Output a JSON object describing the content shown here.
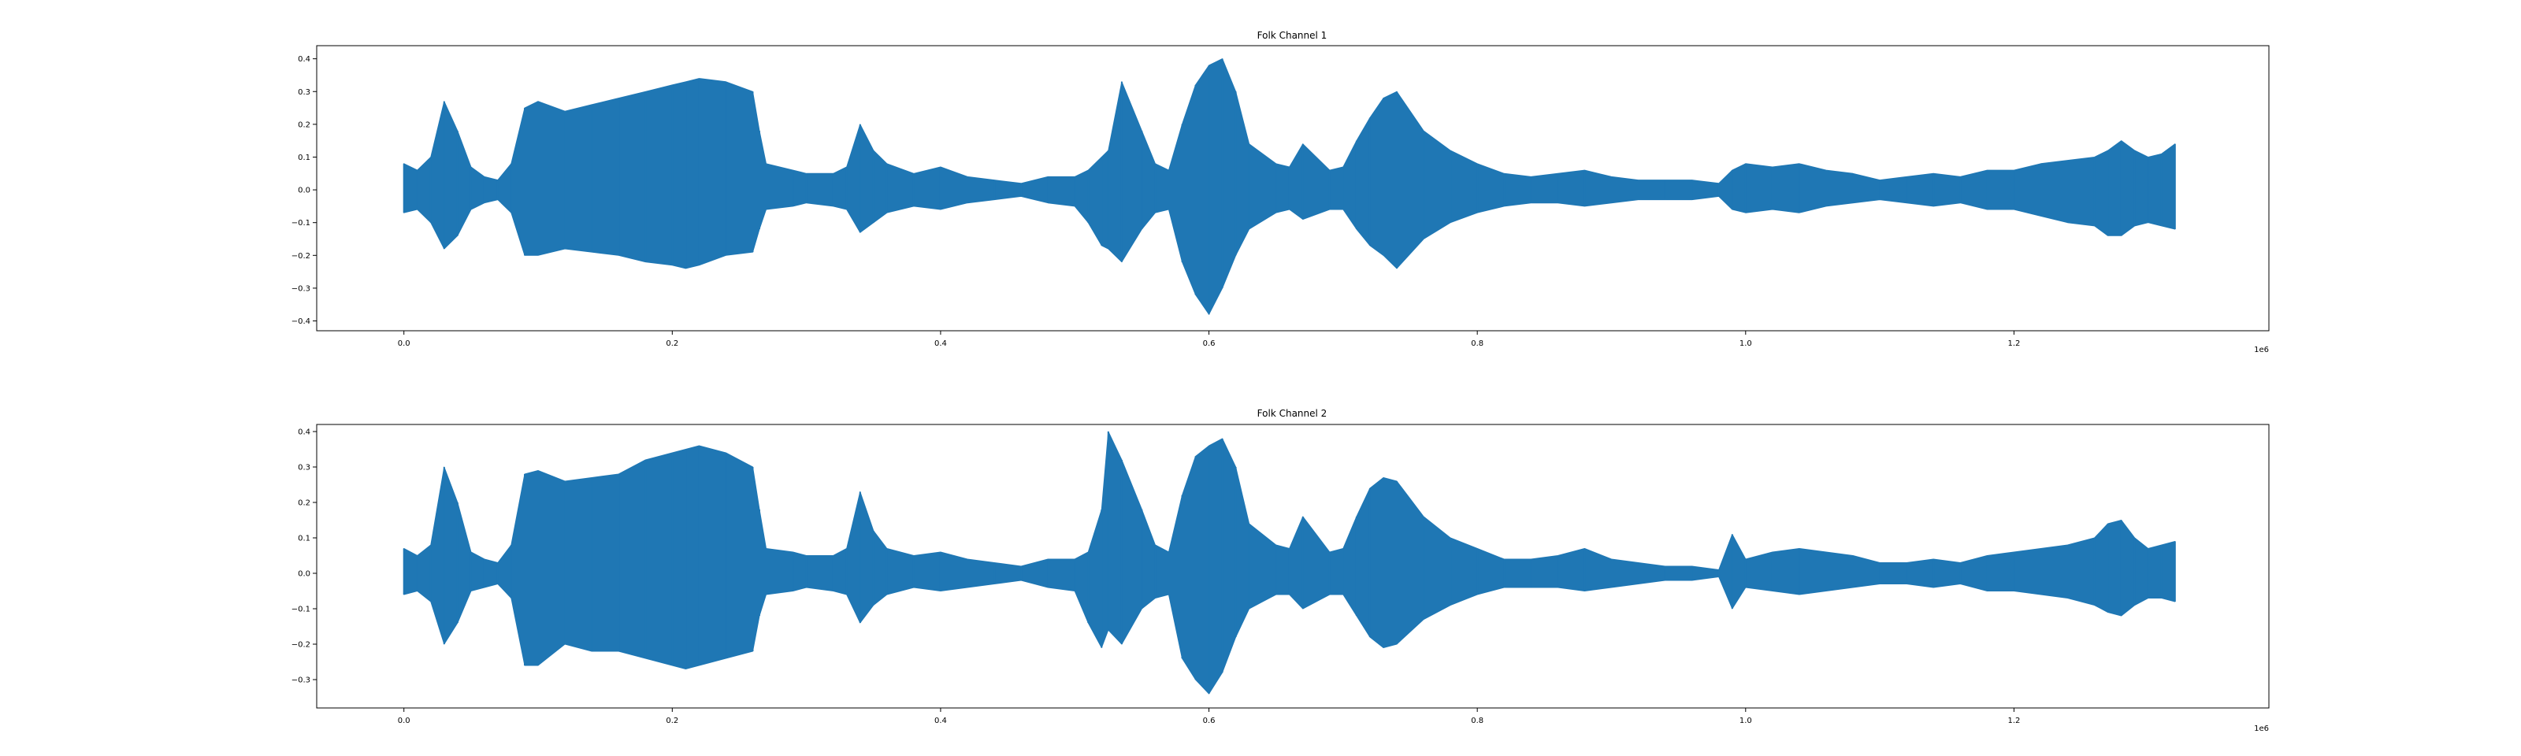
{
  "chart_data": [
    {
      "type": "area",
      "title": "Folk Channel 1",
      "xlabel": "",
      "ylabel": "",
      "x_offset_label": "1e6",
      "xlim": [
        -65000,
        1390000
      ],
      "ylim": [
        -0.43,
        0.44
      ],
      "x_ticks": [
        0,
        200000,
        400000,
        600000,
        800000,
        1000000,
        1200000
      ],
      "x_tick_labels": [
        "0.0",
        "0.2",
        "0.4",
        "0.6",
        "0.8",
        "1.0",
        "1.2"
      ],
      "y_ticks": [
        0.4,
        0.3,
        0.2,
        0.1,
        0.0,
        -0.1,
        -0.2,
        -0.3,
        -0.4
      ],
      "y_tick_labels": [
        "0.4",
        "0.3",
        "0.2",
        "0.1",
        "0.0",
        "−0.1",
        "−0.2",
        "−0.3",
        "−0.4"
      ],
      "grid": false,
      "color": "#1f77b4",
      "series": [
        {
          "x": [
            0,
            10000,
            20000,
            30000,
            40000,
            50000,
            60000,
            70000,
            80000,
            90000,
            100000,
            120000,
            140000,
            160000,
            180000,
            200000,
            210000,
            220000,
            240000,
            260000,
            265000,
            270000,
            290000,
            300000,
            320000,
            330000,
            340000,
            350000,
            360000,
            380000,
            400000,
            420000,
            440000,
            460000,
            480000,
            500000,
            510000,
            520000,
            525000,
            535000,
            550000,
            560000,
            570000,
            580000,
            590000,
            600000,
            610000,
            620000,
            630000,
            650000,
            660000,
            670000,
            690000,
            700000,
            710000,
            720000,
            730000,
            740000,
            760000,
            780000,
            800000,
            820000,
            840000,
            860000,
            880000,
            900000,
            920000,
            940000,
            960000,
            980000,
            990000,
            1000000,
            1020000,
            1040000,
            1060000,
            1080000,
            1100000,
            1120000,
            1140000,
            1160000,
            1180000,
            1200000,
            1220000,
            1240000,
            1260000,
            1270000,
            1280000,
            1290000,
            1300000,
            1310000,
            1320000
          ],
          "upper": [
            0.08,
            0.06,
            0.1,
            0.27,
            0.18,
            0.07,
            0.04,
            0.03,
            0.08,
            0.25,
            0.27,
            0.24,
            0.26,
            0.28,
            0.3,
            0.32,
            0.33,
            0.34,
            0.33,
            0.3,
            0.18,
            0.08,
            0.06,
            0.05,
            0.05,
            0.07,
            0.2,
            0.12,
            0.08,
            0.05,
            0.07,
            0.04,
            0.03,
            0.02,
            0.04,
            0.04,
            0.06,
            0.1,
            0.12,
            0.33,
            0.18,
            0.08,
            0.06,
            0.2,
            0.32,
            0.38,
            0.4,
            0.3,
            0.14,
            0.08,
            0.07,
            0.14,
            0.06,
            0.07,
            0.15,
            0.22,
            0.28,
            0.3,
            0.18,
            0.12,
            0.08,
            0.05,
            0.04,
            0.05,
            0.06,
            0.04,
            0.03,
            0.03,
            0.03,
            0.02,
            0.06,
            0.08,
            0.07,
            0.08,
            0.06,
            0.05,
            0.03,
            0.04,
            0.05,
            0.04,
            0.06,
            0.06,
            0.08,
            0.09,
            0.1,
            0.12,
            0.15,
            0.12,
            0.1,
            0.11,
            0.14
          ],
          "lower": [
            -0.07,
            -0.06,
            -0.1,
            -0.18,
            -0.14,
            -0.06,
            -0.04,
            -0.03,
            -0.07,
            -0.2,
            -0.2,
            -0.18,
            -0.19,
            -0.2,
            -0.22,
            -0.23,
            -0.24,
            -0.23,
            -0.2,
            -0.19,
            -0.12,
            -0.06,
            -0.05,
            -0.04,
            -0.05,
            -0.06,
            -0.13,
            -0.1,
            -0.07,
            -0.05,
            -0.06,
            -0.04,
            -0.03,
            -0.02,
            -0.04,
            -0.05,
            -0.1,
            -0.17,
            -0.18,
            -0.22,
            -0.12,
            -0.07,
            -0.06,
            -0.22,
            -0.32,
            -0.38,
            -0.3,
            -0.2,
            -0.12,
            -0.07,
            -0.06,
            -0.09,
            -0.06,
            -0.06,
            -0.12,
            -0.17,
            -0.2,
            -0.24,
            -0.15,
            -0.1,
            -0.07,
            -0.05,
            -0.04,
            -0.04,
            -0.05,
            -0.04,
            -0.03,
            -0.03,
            -0.03,
            -0.02,
            -0.06,
            -0.07,
            -0.06,
            -0.07,
            -0.05,
            -0.04,
            -0.03,
            -0.04,
            -0.05,
            -0.04,
            -0.06,
            -0.06,
            -0.08,
            -0.1,
            -0.11,
            -0.14,
            -0.14,
            -0.11,
            -0.1,
            -0.11,
            -0.12
          ]
        }
      ]
    },
    {
      "type": "area",
      "title": "Folk Channel 2",
      "xlabel": "",
      "ylabel": "",
      "x_offset_label": "1e6",
      "xlim": [
        -65000,
        1390000
      ],
      "ylim": [
        -0.38,
        0.42
      ],
      "x_ticks": [
        0,
        200000,
        400000,
        600000,
        800000,
        1000000,
        1200000
      ],
      "x_tick_labels": [
        "0.0",
        "0.2",
        "0.4",
        "0.6",
        "0.8",
        "1.0",
        "1.2"
      ],
      "y_ticks": [
        0.4,
        0.3,
        0.2,
        0.1,
        0.0,
        -0.1,
        -0.2,
        -0.3
      ],
      "y_tick_labels": [
        "0.4",
        "0.3",
        "0.2",
        "0.1",
        "0.0",
        "−0.1",
        "−0.2",
        "−0.3"
      ],
      "grid": false,
      "color": "#1f77b4",
      "series": [
        {
          "x": [
            0,
            10000,
            20000,
            30000,
            40000,
            50000,
            60000,
            70000,
            80000,
            90000,
            100000,
            120000,
            140000,
            160000,
            180000,
            200000,
            210000,
            220000,
            240000,
            260000,
            265000,
            270000,
            290000,
            300000,
            320000,
            330000,
            340000,
            350000,
            360000,
            380000,
            400000,
            420000,
            440000,
            460000,
            480000,
            500000,
            510000,
            520000,
            525000,
            535000,
            550000,
            560000,
            570000,
            580000,
            590000,
            600000,
            610000,
            620000,
            630000,
            650000,
            660000,
            670000,
            690000,
            700000,
            710000,
            720000,
            730000,
            740000,
            760000,
            780000,
            800000,
            820000,
            840000,
            860000,
            880000,
            900000,
            920000,
            940000,
            960000,
            980000,
            990000,
            1000000,
            1020000,
            1040000,
            1060000,
            1080000,
            1100000,
            1120000,
            1140000,
            1160000,
            1180000,
            1200000,
            1220000,
            1240000,
            1260000,
            1270000,
            1280000,
            1290000,
            1300000,
            1310000,
            1320000
          ],
          "upper": [
            0.07,
            0.05,
            0.08,
            0.3,
            0.2,
            0.06,
            0.04,
            0.03,
            0.08,
            0.28,
            0.29,
            0.26,
            0.27,
            0.28,
            0.32,
            0.34,
            0.35,
            0.36,
            0.34,
            0.3,
            0.18,
            0.07,
            0.06,
            0.05,
            0.05,
            0.07,
            0.23,
            0.12,
            0.07,
            0.05,
            0.06,
            0.04,
            0.03,
            0.02,
            0.04,
            0.04,
            0.06,
            0.18,
            0.4,
            0.32,
            0.18,
            0.08,
            0.06,
            0.22,
            0.33,
            0.36,
            0.38,
            0.3,
            0.14,
            0.08,
            0.07,
            0.16,
            0.06,
            0.07,
            0.16,
            0.24,
            0.27,
            0.26,
            0.16,
            0.1,
            0.07,
            0.04,
            0.04,
            0.05,
            0.07,
            0.04,
            0.03,
            0.02,
            0.02,
            0.01,
            0.11,
            0.04,
            0.06,
            0.07,
            0.06,
            0.05,
            0.03,
            0.03,
            0.04,
            0.03,
            0.05,
            0.06,
            0.07,
            0.08,
            0.1,
            0.14,
            0.15,
            0.1,
            0.07,
            0.08,
            0.09
          ],
          "lower": [
            -0.06,
            -0.05,
            -0.08,
            -0.2,
            -0.14,
            -0.05,
            -0.04,
            -0.03,
            -0.07,
            -0.26,
            -0.26,
            -0.2,
            -0.22,
            -0.22,
            -0.24,
            -0.26,
            -0.27,
            -0.26,
            -0.24,
            -0.22,
            -0.12,
            -0.06,
            -0.05,
            -0.04,
            -0.05,
            -0.06,
            -0.14,
            -0.09,
            -0.06,
            -0.04,
            -0.05,
            -0.04,
            -0.03,
            -0.02,
            -0.04,
            -0.05,
            -0.14,
            -0.21,
            -0.16,
            -0.2,
            -0.1,
            -0.07,
            -0.06,
            -0.24,
            -0.3,
            -0.34,
            -0.28,
            -0.18,
            -0.1,
            -0.06,
            -0.06,
            -0.1,
            -0.06,
            -0.06,
            -0.12,
            -0.18,
            -0.21,
            -0.2,
            -0.13,
            -0.09,
            -0.06,
            -0.04,
            -0.04,
            -0.04,
            -0.05,
            -0.04,
            -0.03,
            -0.02,
            -0.02,
            -0.01,
            -0.1,
            -0.04,
            -0.05,
            -0.06,
            -0.05,
            -0.04,
            -0.03,
            -0.03,
            -0.04,
            -0.03,
            -0.05,
            -0.05,
            -0.06,
            -0.07,
            -0.09,
            -0.11,
            -0.12,
            -0.09,
            -0.07,
            -0.07,
            -0.08
          ]
        }
      ]
    }
  ]
}
